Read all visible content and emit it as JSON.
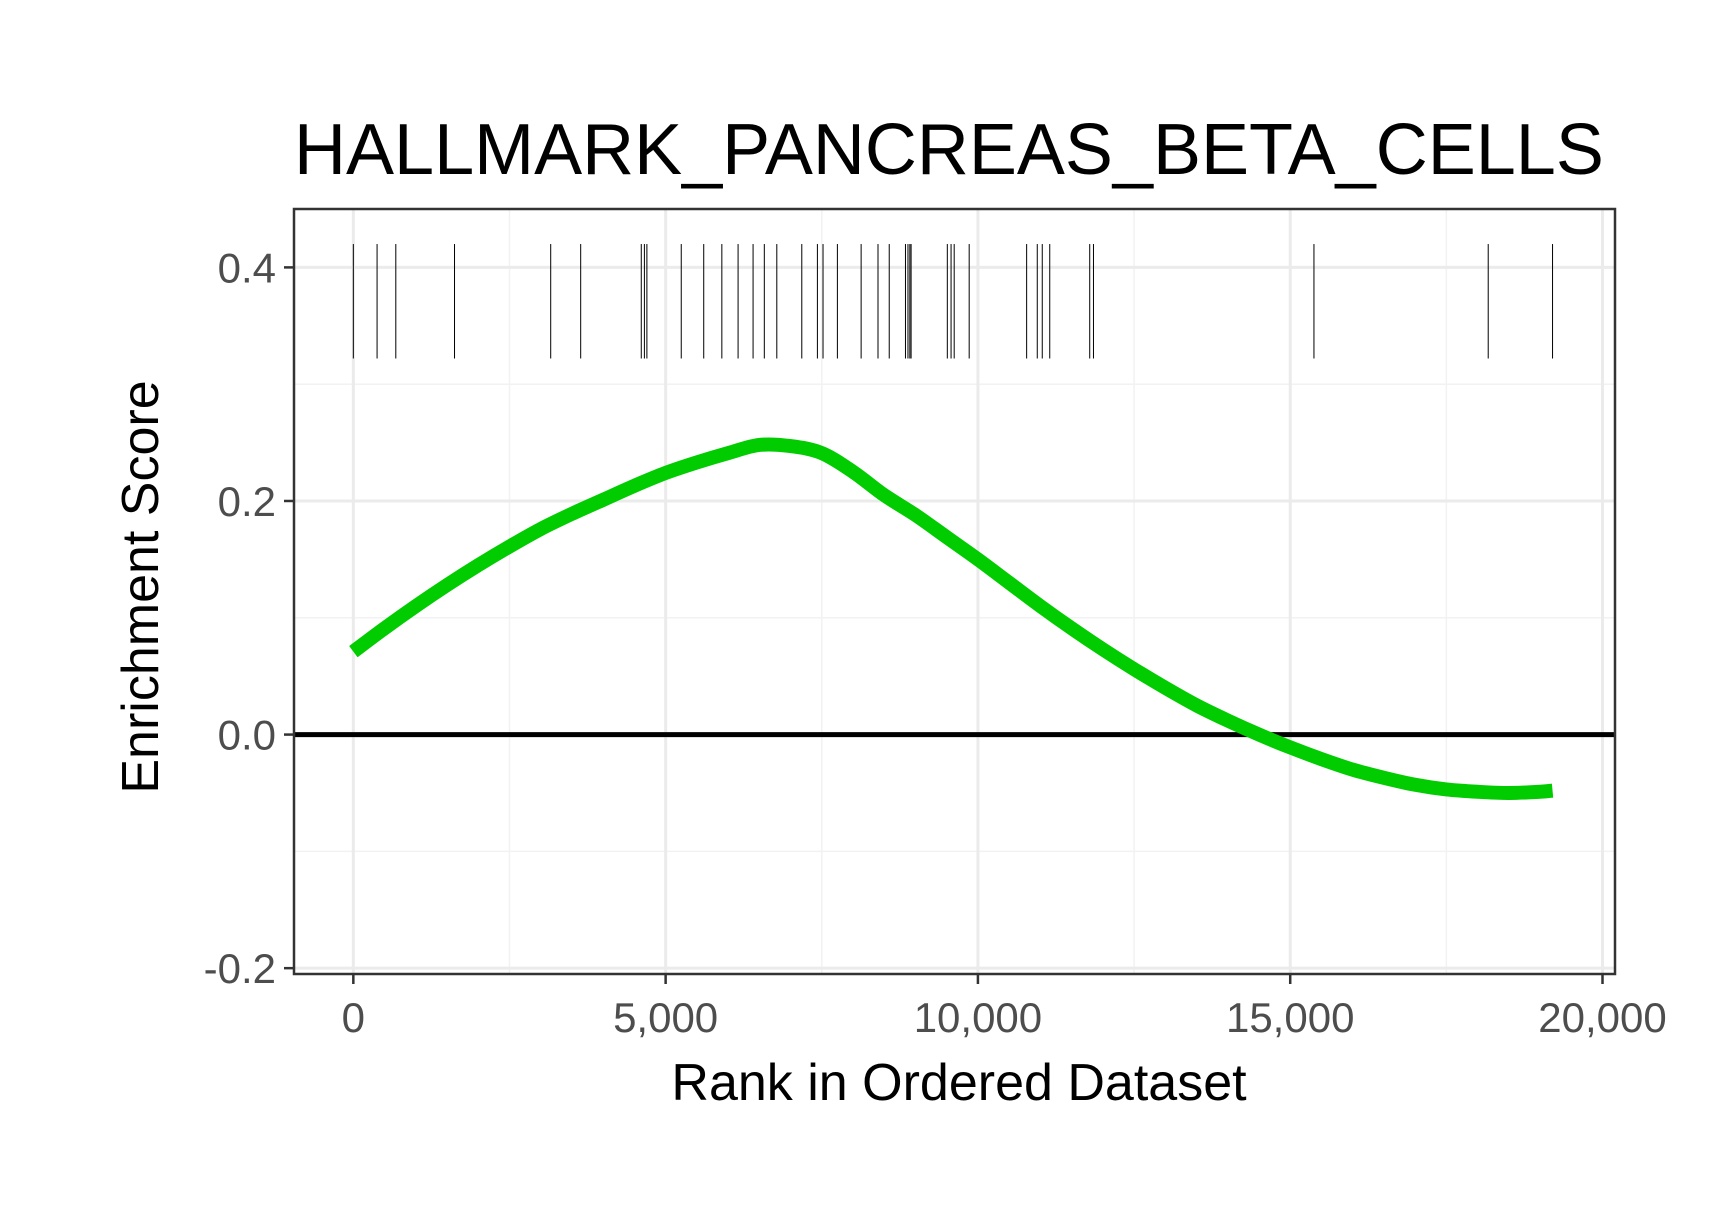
{
  "chart_data": {
    "type": "line",
    "title": "HALLMARK_PANCREAS_BETA_CELLS",
    "xlabel": "Rank in Ordered Dataset",
    "ylabel": "Enrichment Score",
    "xlim": [
      -950,
      20200
    ],
    "ylim": [
      -0.205,
      0.45
    ],
    "x_ticks": [
      0,
      5000,
      10000,
      15000,
      20000
    ],
    "x_tick_labels": [
      "0",
      "5,000",
      "10,000",
      "15,000",
      "20,000"
    ],
    "y_ticks": [
      -0.2,
      0.0,
      0.2,
      0.4
    ],
    "y_tick_labels": [
      "-0.2",
      "0.0",
      "0.2",
      "0.4"
    ],
    "grid": true,
    "reference_line_y": 0,
    "series": [
      {
        "color": "#00cc00",
        "x": [
          0,
          500,
          1000,
          1500,
          2000,
          2500,
          3000,
          3500,
          4000,
          4500,
          5000,
          5500,
          6000,
          6500,
          7000,
          7500,
          8000,
          8500,
          9000,
          9500,
          10000,
          10500,
          11000,
          11500,
          12000,
          12500,
          13000,
          13500,
          14000,
          14500,
          15000,
          15500,
          16000,
          16500,
          17000,
          17500,
          18000,
          18500,
          19000,
          19200
        ],
        "y": [
          0.071,
          0.091,
          0.11,
          0.128,
          0.145,
          0.161,
          0.176,
          0.189,
          0.201,
          0.213,
          0.224,
          0.233,
          0.241,
          0.248,
          0.247,
          0.241,
          0.225,
          0.205,
          0.188,
          0.169,
          0.15,
          0.13,
          0.11,
          0.091,
          0.073,
          0.056,
          0.04,
          0.025,
          0.012,
          0.0,
          -0.011,
          -0.021,
          -0.03,
          -0.037,
          -0.043,
          -0.047,
          -0.049,
          -0.05,
          -0.049,
          -0.048
        ]
      }
    ],
    "hit_ticks": {
      "y_range": [
        0.322,
        0.42
      ],
      "color": "#000000",
      "positions": [
        0,
        380,
        680,
        1620,
        3160,
        3640,
        4610,
        4660,
        4700,
        5250,
        5610,
        5900,
        6160,
        6400,
        6580,
        6780,
        7180,
        7430,
        7520,
        7750,
        8130,
        8400,
        8580,
        8840,
        8880,
        8910,
        8930,
        9510,
        9570,
        9620,
        9860,
        10780,
        10950,
        11030,
        11150,
        11790,
        11850,
        15380,
        18170,
        19200
      ]
    }
  }
}
